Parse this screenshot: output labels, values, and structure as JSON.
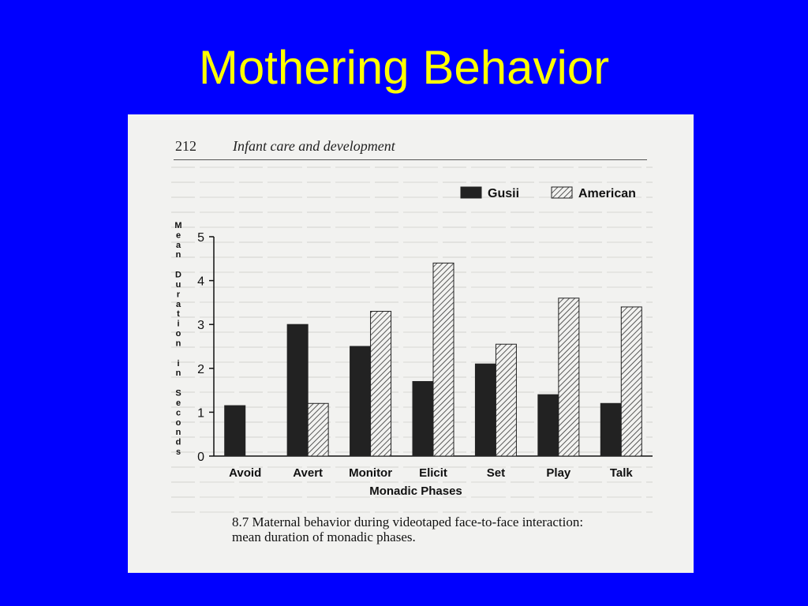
{
  "slide": {
    "title": "Mothering Behavior"
  },
  "page": {
    "number": "212",
    "header": "Infant care and development",
    "caption_line1": "8.7 Maternal behavior during videotaped face-to-face interaction:",
    "caption_line2": "mean duration of monadic phases."
  },
  "colors": {
    "background": "#0000ff",
    "title": "#ffff00",
    "gusii_fill": "#222222",
    "american_hatch": "#333333"
  },
  "chart_data": {
    "type": "bar",
    "categories": [
      "Avoid",
      "Avert",
      "Monitor",
      "Elicit",
      "Set",
      "Play",
      "Talk"
    ],
    "series": [
      {
        "name": "Gusii",
        "values": [
          1.15,
          3.0,
          2.5,
          1.7,
          2.1,
          1.4,
          1.2
        ]
      },
      {
        "name": "American",
        "values": [
          0,
          1.2,
          3.3,
          4.4,
          2.55,
          3.6,
          3.4
        ]
      }
    ],
    "ylabel": "Mean Duration in Seconds",
    "xlabel": "Monadic Phases",
    "ylim": [
      0,
      5
    ],
    "yticks": [
      "0",
      "1",
      "2",
      "3",
      "4",
      "5"
    ],
    "legend_position": "top-right",
    "grid": false
  }
}
